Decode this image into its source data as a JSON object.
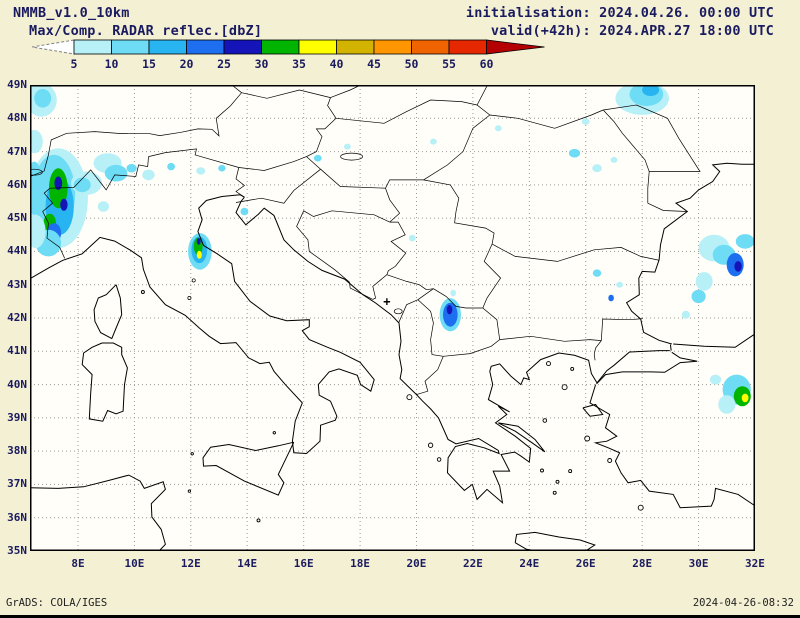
{
  "header": {
    "model": "NMMB_v1.0_10km",
    "init": "initialisation: 2024.04.26. 00:00 UTC",
    "valid": "valid(+42h): 2024.APR.27 18:00 UTC"
  },
  "legend": {
    "label": "Max/Comp. RADAR reflec.[dbZ]",
    "ticks": [
      "5",
      "10",
      "15",
      "20",
      "25",
      "30",
      "35",
      "40",
      "45",
      "50",
      "55",
      "60"
    ],
    "under_color": "#ffffff",
    "over_color": "#b40000",
    "colors": [
      "#b8f0f8",
      "#6edcf4",
      "#28b4f0",
      "#1e6ef0",
      "#1414b8",
      "#00b400",
      "#ffff00",
      "#d2b400",
      "#ff9600",
      "#f06400",
      "#e62800"
    ]
  },
  "axes": {
    "lat_labels": [
      "49N",
      "48N",
      "47N",
      "46N",
      "45N",
      "44N",
      "43N",
      "42N",
      "41N",
      "40N",
      "39N",
      "38N",
      "37N",
      "36N",
      "35N"
    ],
    "lat_values": [
      49,
      48,
      47,
      46,
      45,
      44,
      43,
      42,
      41,
      40,
      39,
      38,
      37,
      36,
      35
    ],
    "lon_labels": [
      "8E",
      "10E",
      "12E",
      "14E",
      "16E",
      "18E",
      "20E",
      "22E",
      "24E",
      "26E",
      "28E",
      "30E",
      "32E"
    ],
    "lon_values": [
      8,
      10,
      12,
      14,
      16,
      18,
      20,
      22,
      24,
      26,
      28,
      30,
      32
    ],
    "lon_min": 6.3,
    "lon_max": 32,
    "lat_min": 35,
    "lat_max": 49
  },
  "radar_cells": [
    [
      6.7,
      48.55,
      0.55,
      0.5,
      0
    ],
    [
      6.75,
      48.6,
      0.3,
      0.28,
      1
    ],
    [
      6.45,
      47.3,
      0.3,
      0.35,
      0
    ],
    [
      7.3,
      45.6,
      1.05,
      1.5,
      0
    ],
    [
      7.15,
      45.75,
      0.75,
      1.15,
      1
    ],
    [
      7.35,
      45.35,
      0.5,
      0.85,
      2
    ],
    [
      7.3,
      45.9,
      0.33,
      0.6,
      5
    ],
    [
      7.3,
      46.05,
      0.14,
      0.2,
      4
    ],
    [
      7.5,
      45.4,
      0.13,
      0.18,
      4
    ],
    [
      7.0,
      44.85,
      0.22,
      0.28,
      5
    ],
    [
      7.15,
      44.55,
      0.25,
      0.3,
      3
    ],
    [
      6.95,
      44.25,
      0.45,
      0.4,
      1
    ],
    [
      6.5,
      44.6,
      0.35,
      0.5,
      0
    ],
    [
      6.45,
      45.9,
      0.3,
      0.8,
      1
    ],
    [
      8.3,
      46.05,
      0.55,
      0.35,
      0
    ],
    [
      8.15,
      46.0,
      0.3,
      0.22,
      1
    ],
    [
      9.05,
      46.65,
      0.5,
      0.3,
      0
    ],
    [
      9.35,
      46.35,
      0.4,
      0.25,
      1
    ],
    [
      9.9,
      46.5,
      0.18,
      0.13,
      1
    ],
    [
      10.5,
      46.3,
      0.22,
      0.16,
      0
    ],
    [
      11.3,
      46.55,
      0.14,
      0.11,
      1
    ],
    [
      12.35,
      46.42,
      0.16,
      0.11,
      0
    ],
    [
      13.1,
      46.5,
      0.13,
      0.1,
      1
    ],
    [
      8.9,
      45.35,
      0.2,
      0.16,
      0
    ],
    [
      12.32,
      44.0,
      0.42,
      0.55,
      1
    ],
    [
      12.3,
      44.05,
      0.28,
      0.4,
      2
    ],
    [
      12.26,
      44.15,
      0.16,
      0.26,
      5
    ],
    [
      12.3,
      43.9,
      0.09,
      0.12,
      6
    ],
    [
      12.28,
      44.3,
      0.07,
      0.1,
      4
    ],
    [
      13.9,
      45.2,
      0.14,
      0.11,
      1
    ],
    [
      16.5,
      46.8,
      0.14,
      0.1,
      1
    ],
    [
      17.55,
      47.15,
      0.12,
      0.09,
      0
    ],
    [
      20.6,
      47.3,
      0.12,
      0.09,
      0
    ],
    [
      22.9,
      47.7,
      0.12,
      0.09,
      0
    ],
    [
      21.2,
      42.1,
      0.38,
      0.5,
      1
    ],
    [
      21.2,
      42.1,
      0.26,
      0.36,
      3
    ],
    [
      21.17,
      42.25,
      0.1,
      0.14,
      4
    ],
    [
      21.3,
      42.75,
      0.1,
      0.1,
      0
    ],
    [
      19.85,
      44.4,
      0.12,
      0.1,
      0
    ],
    [
      25.6,
      46.95,
      0.2,
      0.13,
      1
    ],
    [
      26.4,
      46.5,
      0.17,
      0.12,
      0
    ],
    [
      27.0,
      46.75,
      0.12,
      0.09,
      0
    ],
    [
      26.4,
      43.35,
      0.15,
      0.11,
      1
    ],
    [
      27.2,
      43.0,
      0.12,
      0.09,
      0
    ],
    [
      26.9,
      42.6,
      0.1,
      0.1,
      3
    ],
    [
      28.0,
      48.6,
      0.95,
      0.5,
      0
    ],
    [
      28.15,
      48.72,
      0.6,
      0.35,
      1
    ],
    [
      28.3,
      48.85,
      0.3,
      0.18,
      2
    ],
    [
      26.0,
      47.9,
      0.14,
      0.1,
      0
    ],
    [
      30.55,
      44.1,
      0.55,
      0.4,
      0
    ],
    [
      30.9,
      43.9,
      0.4,
      0.3,
      1
    ],
    [
      31.3,
      43.6,
      0.3,
      0.35,
      3
    ],
    [
      31.4,
      43.55,
      0.13,
      0.16,
      4
    ],
    [
      31.65,
      44.3,
      0.33,
      0.22,
      1
    ],
    [
      30.2,
      43.1,
      0.3,
      0.28,
      0
    ],
    [
      30.0,
      42.65,
      0.25,
      0.2,
      1
    ],
    [
      29.55,
      42.1,
      0.15,
      0.12,
      0
    ],
    [
      31.35,
      39.85,
      0.5,
      0.45,
      1
    ],
    [
      31.55,
      39.65,
      0.3,
      0.3,
      5
    ],
    [
      31.65,
      39.6,
      0.12,
      0.13,
      6
    ],
    [
      31.0,
      39.4,
      0.3,
      0.28,
      0
    ],
    [
      30.6,
      40.15,
      0.2,
      0.15,
      0
    ]
  ],
  "marker": {
    "symbol": "+",
    "lon": 18.95,
    "lat": 42.5
  },
  "footer": {
    "left": "GrADS: COLA/IGES",
    "right": "2024-04-26-08:32"
  }
}
